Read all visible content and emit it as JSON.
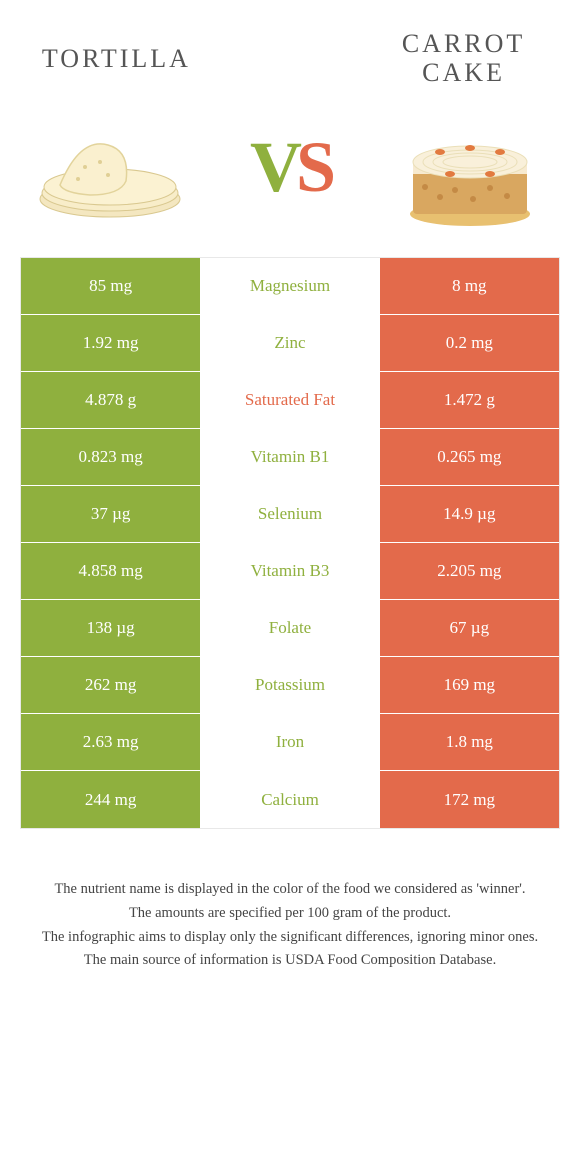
{
  "colors": {
    "left": "#8fb03e",
    "right": "#e36a4b",
    "background": "#ffffff",
    "text": "#333333"
  },
  "header": {
    "left_title": "TORTILLA",
    "right_title": "CARROT CAKE",
    "vs_v": "V",
    "vs_s": "S"
  },
  "rows": [
    {
      "left": "85 mg",
      "label": "Magnesium",
      "right": "8 mg",
      "winner": "left"
    },
    {
      "left": "1.92 mg",
      "label": "Zinc",
      "right": "0.2 mg",
      "winner": "left"
    },
    {
      "left": "4.878 g",
      "label": "Saturated Fat",
      "right": "1.472 g",
      "winner": "right"
    },
    {
      "left": "0.823 mg",
      "label": "Vitamin B1",
      "right": "0.265 mg",
      "winner": "left"
    },
    {
      "left": "37 µg",
      "label": "Selenium",
      "right": "14.9 µg",
      "winner": "left"
    },
    {
      "left": "4.858 mg",
      "label": "Vitamin B3",
      "right": "2.205 mg",
      "winner": "left"
    },
    {
      "left": "138 µg",
      "label": "Folate",
      "right": "67 µg",
      "winner": "left"
    },
    {
      "left": "262 mg",
      "label": "Potassium",
      "right": "169 mg",
      "winner": "left"
    },
    {
      "left": "2.63 mg",
      "label": "Iron",
      "right": "1.8 mg",
      "winner": "left"
    },
    {
      "left": "244 mg",
      "label": "Calcium",
      "right": "172 mg",
      "winner": "left"
    }
  ],
  "footnote": {
    "line1": "The nutrient name is displayed in the color of the food we considered as 'winner'.",
    "line2": "The amounts are specified per 100 gram of the product.",
    "line3": "The infographic aims to display only the significant differences, ignoring minor ones.",
    "line4": "The main source of information is USDA Food Composition Database."
  }
}
